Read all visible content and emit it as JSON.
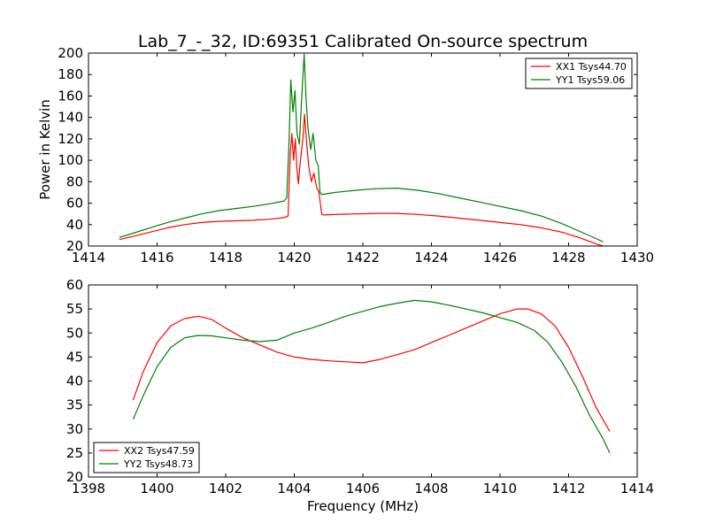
{
  "chart_data": [
    {
      "type": "line",
      "title": "Lab_7_-_32, ID:69351 Calibrated On-source spectrum",
      "xlabel": "",
      "ylabel": "Power in Kelvin",
      "xlim": [
        1414,
        1430
      ],
      "ylim": [
        20,
        200
      ],
      "xticks": [
        "1414",
        "1416",
        "1418",
        "1420",
        "1422",
        "1424",
        "1426",
        "1428",
        "1430"
      ],
      "yticks": [
        "20",
        "40",
        "60",
        "80",
        "100",
        "120",
        "140",
        "160",
        "180",
        "200"
      ],
      "legend_position": "upper-right",
      "grid": false,
      "series": [
        {
          "name": "XX1 Tsys44.70",
          "color": "#ff0000",
          "points": [
            [
              1414.9,
              26
            ],
            [
              1415.3,
              29
            ],
            [
              1415.8,
              33
            ],
            [
              1416.3,
              37
            ],
            [
              1416.8,
              40
            ],
            [
              1417.3,
              42
            ],
            [
              1417.8,
              43
            ],
            [
              1418.3,
              43.5
            ],
            [
              1418.8,
              44
            ],
            [
              1419.3,
              45
            ],
            [
              1419.7,
              46.5
            ],
            [
              1419.82,
              48
            ],
            [
              1419.88,
              105
            ],
            [
              1419.93,
              125
            ],
            [
              1419.98,
              100
            ],
            [
              1420.03,
              120
            ],
            [
              1420.07,
              95
            ],
            [
              1420.12,
              78
            ],
            [
              1420.18,
              100
            ],
            [
              1420.25,
              120
            ],
            [
              1420.3,
              143
            ],
            [
              1420.35,
              120
            ],
            [
              1420.42,
              95
            ],
            [
              1420.5,
              80
            ],
            [
              1420.57,
              88
            ],
            [
              1420.65,
              75
            ],
            [
              1420.72,
              70
            ],
            [
              1420.8,
              50
            ],
            [
              1420.85,
              49
            ],
            [
              1421.2,
              49.5
            ],
            [
              1421.8,
              50
            ],
            [
              1422.4,
              50.5
            ],
            [
              1423.0,
              50.5
            ],
            [
              1423.6,
              49.5
            ],
            [
              1424.2,
              48
            ],
            [
              1424.8,
              46
            ],
            [
              1425.4,
              44
            ],
            [
              1426.0,
              42
            ],
            [
              1426.6,
              40
            ],
            [
              1427.2,
              37
            ],
            [
              1427.8,
              33
            ],
            [
              1428.3,
              28
            ],
            [
              1428.8,
              22
            ],
            [
              1429.0,
              20
            ]
          ]
        },
        {
          "name": "YY1 Tsys59.06",
          "color": "#008000",
          "points": [
            [
              1414.9,
              28
            ],
            [
              1415.3,
              32
            ],
            [
              1415.8,
              37
            ],
            [
              1416.3,
              42
            ],
            [
              1416.8,
              46
            ],
            [
              1417.3,
              50
            ],
            [
              1417.8,
              53
            ],
            [
              1418.3,
              55
            ],
            [
              1418.8,
              57
            ],
            [
              1419.3,
              59.5
            ],
            [
              1419.7,
              62
            ],
            [
              1419.78,
              65
            ],
            [
              1419.85,
              120
            ],
            [
              1419.9,
              175
            ],
            [
              1419.96,
              145
            ],
            [
              1420.02,
              165
            ],
            [
              1420.08,
              125
            ],
            [
              1420.15,
              115
            ],
            [
              1420.22,
              160
            ],
            [
              1420.29,
              199
            ],
            [
              1420.34,
              160
            ],
            [
              1420.4,
              130
            ],
            [
              1420.48,
              110
            ],
            [
              1420.55,
              125
            ],
            [
              1420.63,
              100
            ],
            [
              1420.7,
              95
            ],
            [
              1420.75,
              70
            ],
            [
              1420.8,
              68
            ],
            [
              1421.2,
              70
            ],
            [
              1421.8,
              72
            ],
            [
              1422.4,
              73.5
            ],
            [
              1423.0,
              74
            ],
            [
              1423.6,
              72
            ],
            [
              1424.2,
              69
            ],
            [
              1424.8,
              65
            ],
            [
              1425.4,
              61
            ],
            [
              1426.0,
              57
            ],
            [
              1426.6,
              53
            ],
            [
              1427.2,
              48
            ],
            [
              1427.8,
              41
            ],
            [
              1428.3,
              34
            ],
            [
              1428.8,
              27
            ],
            [
              1429.0,
              24
            ]
          ]
        }
      ]
    },
    {
      "type": "line",
      "title": "",
      "xlabel": "Frequency (MHz)",
      "ylabel": "",
      "xlim": [
        1398,
        1414
      ],
      "ylim": [
        20,
        60
      ],
      "xticks": [
        "1398",
        "1400",
        "1402",
        "1404",
        "1406",
        "1408",
        "1410",
        "1412",
        "1414"
      ],
      "yticks": [
        "20",
        "25",
        "30",
        "35",
        "40",
        "45",
        "50",
        "55",
        "60"
      ],
      "legend_position": "lower-left",
      "grid": false,
      "series": [
        {
          "name": "XX2 Tsys47.59",
          "color": "#ff0000",
          "points": [
            [
              1399.3,
              36
            ],
            [
              1399.6,
              42
            ],
            [
              1400.0,
              48
            ],
            [
              1400.4,
              51.5
            ],
            [
              1400.8,
              53
            ],
            [
              1401.2,
              53.5
            ],
            [
              1401.6,
              52.8
            ],
            [
              1402.0,
              51
            ],
            [
              1402.5,
              49
            ],
            [
              1403.0,
              47.5
            ],
            [
              1403.5,
              46
            ],
            [
              1404.0,
              45
            ],
            [
              1404.5,
              44.5
            ],
            [
              1405.0,
              44.2
            ],
            [
              1405.5,
              44
            ],
            [
              1406.0,
              43.8
            ],
            [
              1406.5,
              44.5
            ],
            [
              1407.0,
              45.5
            ],
            [
              1407.5,
              46.5
            ],
            [
              1408.0,
              48
            ],
            [
              1408.5,
              49.5
            ],
            [
              1409.0,
              51
            ],
            [
              1409.5,
              52.5
            ],
            [
              1410.0,
              54
            ],
            [
              1410.5,
              55
            ],
            [
              1410.8,
              55
            ],
            [
              1411.2,
              54
            ],
            [
              1411.6,
              51.5
            ],
            [
              1412.0,
              47
            ],
            [
              1412.4,
              41
            ],
            [
              1412.8,
              34.5
            ],
            [
              1413.2,
              29.5
            ]
          ]
        },
        {
          "name": "YY2 Tsys48.73",
          "color": "#008000",
          "points": [
            [
              1399.3,
              32
            ],
            [
              1399.6,
              37
            ],
            [
              1400.0,
              43
            ],
            [
              1400.4,
              47
            ],
            [
              1400.8,
              49
            ],
            [
              1401.2,
              49.5
            ],
            [
              1401.6,
              49.4
            ],
            [
              1402.0,
              49
            ],
            [
              1402.5,
              48.5
            ],
            [
              1403.0,
              48.2
            ],
            [
              1403.5,
              48.5
            ],
            [
              1404.0,
              50
            ],
            [
              1404.5,
              51
            ],
            [
              1405.0,
              52.2
            ],
            [
              1405.5,
              53.5
            ],
            [
              1406.0,
              54.5
            ],
            [
              1406.5,
              55.5
            ],
            [
              1407.0,
              56.2
            ],
            [
              1407.5,
              56.8
            ],
            [
              1408.0,
              56.5
            ],
            [
              1408.5,
              55.8
            ],
            [
              1409.0,
              55
            ],
            [
              1409.5,
              54.2
            ],
            [
              1410.0,
              53.2
            ],
            [
              1410.5,
              52.2
            ],
            [
              1411.0,
              50.5
            ],
            [
              1411.4,
              48
            ],
            [
              1411.8,
              44
            ],
            [
              1412.2,
              39
            ],
            [
              1412.6,
              33
            ],
            [
              1413.0,
              28
            ],
            [
              1413.2,
              25
            ]
          ]
        }
      ]
    }
  ]
}
